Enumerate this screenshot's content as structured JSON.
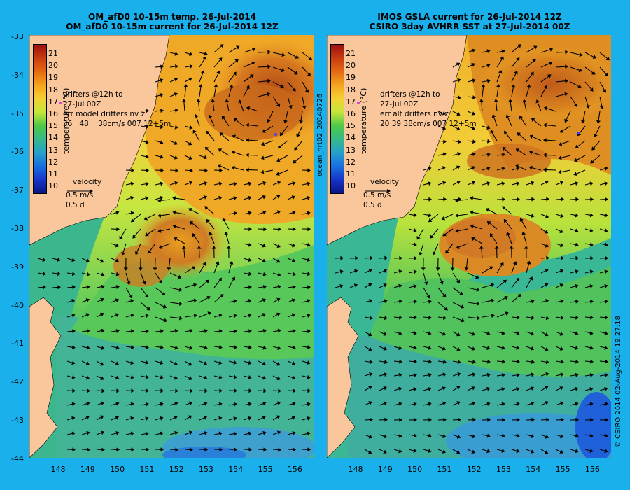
{
  "panels": [
    {
      "title_line1": "OM_afD0 10-15m temp. 26-Jul-2014",
      "title_line2": "OM_afD0 10-15m current for 26-Jul-2014 12Z",
      "drifters": "drifters @12h to\n27-Jul 00Z\nerr model drifters nv z\n36   48    38cm/s 007 12+5m",
      "velocity": "velocity",
      "velocity_scale": "0.5 m/s\n0.5 d"
    },
    {
      "title_line1": "IMOS GSLA current for 26-Jul-2014 12Z",
      "title_line2": "CSIRO 3day AVHRR SST at 27-Jul-2014 00Z",
      "drifters": "drifters @12h to\n27-Jul 00Z\nerr alt drifters nv z\n20 39 38cm/s 007 12+5m",
      "velocity": "velocity",
      "velocity_scale": "0.5 m/s\n0.5 d"
    }
  ],
  "colorbar": {
    "title": "temperature (°C)",
    "ticks": [
      "21",
      "20",
      "19",
      "18",
      "17",
      "16",
      "15",
      "14",
      "13",
      "12",
      "11",
      "10"
    ]
  },
  "y_ticks": [
    "-33",
    "-34",
    "-35",
    "-36",
    "-37",
    "-38",
    "-39",
    "-40",
    "-41",
    "-42",
    "-43",
    "-44"
  ],
  "x_ticks": [
    "148",
    "149",
    "150",
    "151",
    "152",
    "153",
    "154",
    "155",
    "156"
  ],
  "middle_label": "ocean_nrt02_20140726",
  "right_label": "© CSIRO 2014   02-Aug-2014 19:27:18",
  "colors": {
    "background": "#1ab0ec",
    "land": "#f9c79b",
    "warm": "#c9611c",
    "cold": "#1a5de0"
  }
}
